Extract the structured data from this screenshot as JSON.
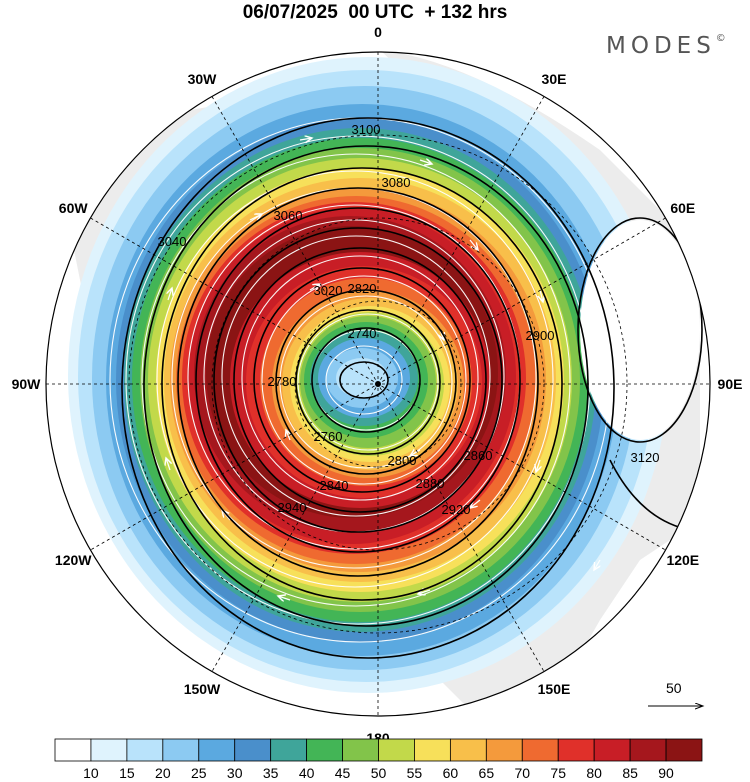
{
  "title": "06/07/2025  00 UTC  + 132 hrs",
  "logo": {
    "text": "MODES",
    "mark": "©"
  },
  "longitude_labels": [
    {
      "text": "0",
      "lon": 0
    },
    {
      "text": "30E",
      "lon": 30
    },
    {
      "text": "60E",
      "lon": 60
    },
    {
      "text": "90E",
      "lon": 90
    },
    {
      "text": "120E",
      "lon": 120
    },
    {
      "text": "150E",
      "lon": 150
    },
    {
      "text": "180",
      "lon": 180
    },
    {
      "text": "150W",
      "lon": -150
    },
    {
      "text": "120W",
      "lon": -120
    },
    {
      "text": "90W",
      "lon": -90
    },
    {
      "text": "60W",
      "lon": -60
    },
    {
      "text": "30W",
      "lon": -30
    }
  ],
  "contour_labels": [
    "3100",
    "3080",
    "3060",
    "3040",
    "3020",
    "2940",
    "2920",
    "2900",
    "2880",
    "2860",
    "2840",
    "2820",
    "2800",
    "2780",
    "2760",
    "2740",
    "3120"
  ],
  "colorbar": {
    "colors": [
      "#ffffff",
      "#dff3fd",
      "#b9e3fb",
      "#8ccaf2",
      "#5ba9e0",
      "#4a8fcb",
      "#3fa59a",
      "#43b556",
      "#82c44a",
      "#c2d94a",
      "#f7e05a",
      "#f8bf4a",
      "#f49a3c",
      "#ef6a30",
      "#e0302a",
      "#c81e26",
      "#a5171d",
      "#8b1414"
    ],
    "tick_labels": [
      "10",
      "15",
      "20",
      "25",
      "30",
      "35",
      "40",
      "45",
      "50",
      "55",
      "60",
      "65",
      "70",
      "75",
      "80",
      "85",
      "90"
    ]
  },
  "vector_reference": {
    "label": "50"
  }
}
